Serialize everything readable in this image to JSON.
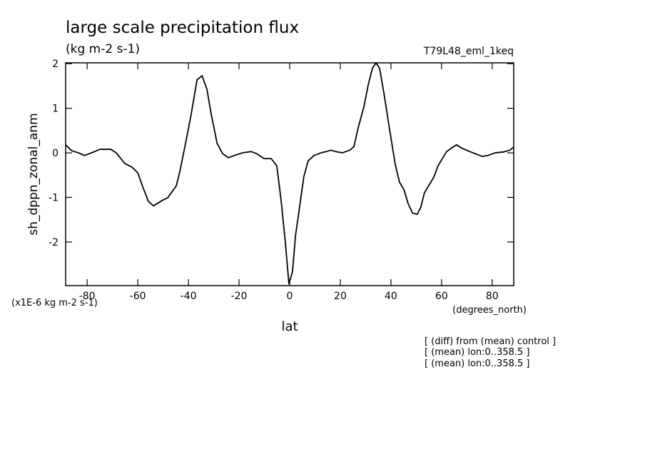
{
  "chart_data": {
    "type": "line",
    "title": "large scale precipitation flux",
    "subtitle": "(kg m-2 s-1)",
    "run_label": "T79L48_eml_1keq",
    "y_label": "sh_dppn_zonal_anm",
    "x_label": "lat",
    "x_units": "(degrees_north)",
    "y_units": "(x1E-6 kg m-2 s-1)",
    "notes": [
      "[ (diff) from (mean) control ]",
      "[ (mean) lon:0..358.5 ]",
      "[ (mean) lon:0..358.5 ]"
    ],
    "xlim": [
      -88.5,
      88.5
    ],
    "ylim": [
      -2.98,
      2.02
    ],
    "xticks": [
      -80,
      -60,
      -40,
      -20,
      0,
      20,
      40,
      60,
      80
    ],
    "yticks": [
      -2,
      -1,
      0,
      1,
      2
    ],
    "series": [
      {
        "color": "#000000",
        "x": [
          -88.5,
          -86.2,
          -83.4,
          -81.1,
          -78.3,
          -74.9,
          -70.7,
          -68.5,
          -65.1,
          -62.3,
          -60,
          -58,
          -55.8,
          -53.8,
          -52.4,
          -50.1,
          -48.2,
          -46.8,
          -44.8,
          -43.4,
          -41.1,
          -38.9,
          -36.6,
          -34.6,
          -32.7,
          -31,
          -28.7,
          -26.5,
          -24.2,
          -21.4,
          -18.6,
          -15.2,
          -13,
          -10.1,
          -7.3,
          -5.1,
          -3.4,
          -1.7,
          -0.3,
          1.1,
          2.3,
          3.9,
          5.6,
          7.3,
          9.6,
          12.4,
          14.6,
          16.3,
          18,
          20.8,
          23.7,
          25.4,
          27,
          29.3,
          31,
          32.7,
          34.1,
          35.5,
          37.2,
          39.4,
          41.7,
          43.4,
          45.1,
          46.8,
          48.5,
          50.4,
          51.8,
          53.2,
          55.2,
          56.9,
          58.6,
          60.3,
          62,
          63.7,
          65.9,
          68.2,
          71.5,
          76.1,
          78.3,
          81.1,
          84.5,
          87,
          88.5
        ],
        "values": [
          0.18,
          0.05,
          0,
          -0.06,
          0,
          0.08,
          0.08,
          0,
          -0.24,
          -0.32,
          -0.45,
          -0.77,
          -1.09,
          -1.19,
          -1.14,
          -1.06,
          -1.01,
          -0.9,
          -0.74,
          -0.42,
          0.22,
          0.87,
          1.64,
          1.73,
          1.43,
          0.87,
          0.22,
          -0.02,
          -0.11,
          -0.05,
          0,
          0.03,
          -0.02,
          -0.13,
          -0.13,
          -0.29,
          -1.06,
          -2.02,
          -2.94,
          -2.67,
          -1.86,
          -1.22,
          -0.53,
          -0.18,
          -0.06,
          0,
          0.03,
          0.06,
          0.03,
          0,
          0.06,
          0.14,
          0.55,
          1.03,
          1.52,
          1.9,
          2.02,
          1.9,
          1.35,
          0.55,
          -0.26,
          -0.66,
          -0.82,
          -1.14,
          -1.35,
          -1.38,
          -1.22,
          -0.9,
          -0.71,
          -0.55,
          -0.29,
          -0.13,
          0.03,
          0.1,
          0.18,
          0.1,
          0.02,
          -0.08,
          -0.06,
          0,
          0.02,
          0.06,
          0.13
        ]
      }
    ]
  }
}
